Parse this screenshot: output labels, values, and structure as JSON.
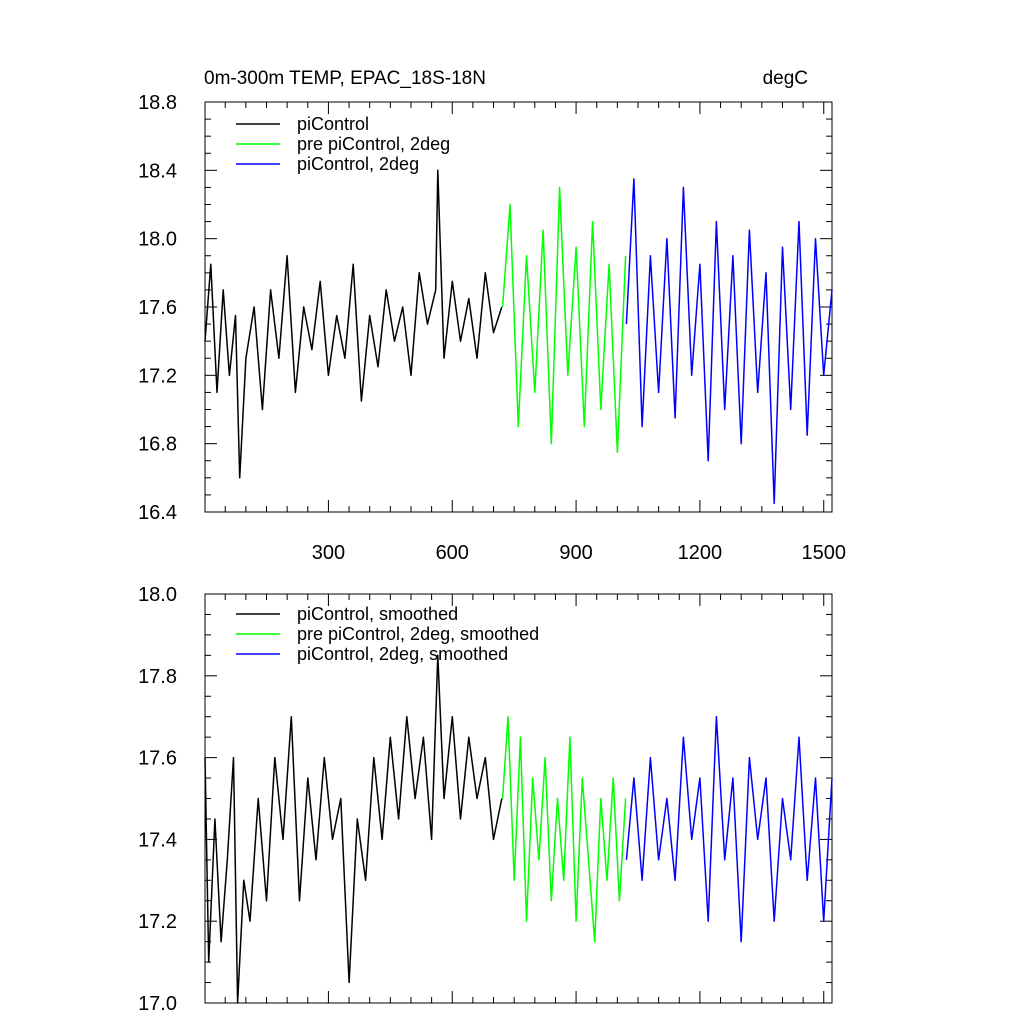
{
  "figure": {
    "title_left": "0m-300m TEMP, EPAC_18S-18N",
    "title_right": "degC"
  },
  "chart_data": [
    {
      "type": "line",
      "title": "0m-300m TEMP, EPAC_18S-18N",
      "units": "degC",
      "xlabel": "",
      "ylabel": "",
      "xlim": [
        1,
        1520
      ],
      "ylim": [
        16.4,
        18.8
      ],
      "xticks": [
        300,
        600,
        900,
        1200,
        1500
      ],
      "yticks": [
        16.4,
        16.8,
        17.2,
        17.6,
        18.0,
        18.4,
        18.8
      ],
      "ytick_labels": [
        "16.4",
        "16.8",
        "17.2",
        "17.6",
        "18.0",
        "18.4",
        "18.8"
      ],
      "legend_position": "top-left",
      "series": [
        {
          "name": "piControl",
          "color": "#000000",
          "x": [
            1,
            15,
            30,
            45,
            60,
            75,
            85,
            100,
            120,
            140,
            160,
            180,
            200,
            220,
            240,
            260,
            280,
            300,
            320,
            340,
            360,
            380,
            400,
            420,
            440,
            460,
            480,
            500,
            520,
            540,
            560,
            565,
            580,
            600,
            620,
            640,
            660,
            680,
            700,
            720
          ],
          "values": [
            17.4,
            17.85,
            17.1,
            17.7,
            17.2,
            17.55,
            16.6,
            17.3,
            17.6,
            17.0,
            17.7,
            17.3,
            17.9,
            17.1,
            17.6,
            17.35,
            17.75,
            17.2,
            17.55,
            17.3,
            17.85,
            17.05,
            17.55,
            17.25,
            17.7,
            17.4,
            17.6,
            17.2,
            17.8,
            17.5,
            17.7,
            18.4,
            17.3,
            17.75,
            17.4,
            17.65,
            17.3,
            17.8,
            17.45,
            17.6
          ]
        },
        {
          "name": "pre piControl, 2deg",
          "color": "#00ff00",
          "x": [
            722,
            740,
            760,
            780,
            800,
            820,
            840,
            860,
            880,
            900,
            920,
            940,
            960,
            980,
            1000,
            1020
          ],
          "values": [
            17.6,
            18.2,
            16.9,
            17.9,
            17.1,
            18.05,
            16.8,
            18.3,
            17.2,
            17.95,
            16.9,
            18.1,
            17.0,
            17.85,
            16.75,
            17.9
          ]
        },
        {
          "name": "piControl, 2deg",
          "color": "#0000ff",
          "x": [
            1022,
            1040,
            1060,
            1080,
            1100,
            1120,
            1140,
            1160,
            1180,
            1200,
            1220,
            1240,
            1260,
            1280,
            1300,
            1320,
            1340,
            1360,
            1380,
            1400,
            1420,
            1440,
            1460,
            1480,
            1500,
            1520
          ],
          "values": [
            17.5,
            18.35,
            16.9,
            17.9,
            17.1,
            18.0,
            16.95,
            18.3,
            17.2,
            17.85,
            16.7,
            18.1,
            17.0,
            17.9,
            16.8,
            18.05,
            17.1,
            17.8,
            16.45,
            17.95,
            17.0,
            18.1,
            16.85,
            18.0,
            17.2,
            17.7
          ]
        }
      ]
    },
    {
      "type": "line",
      "title": "",
      "xlabel": "",
      "ylabel": "",
      "xlim": [
        1,
        1520
      ],
      "ylim": [
        17.0,
        18.0
      ],
      "xticks": [
        300,
        600,
        900,
        1200,
        1500
      ],
      "yticks": [
        17.0,
        17.2,
        17.4,
        17.6,
        17.8,
        18.0
      ],
      "ytick_labels": [
        "17.0",
        "17.2",
        "17.4",
        "17.6",
        "17.8",
        "18.0"
      ],
      "legend_position": "top-left",
      "series": [
        {
          "name": "piControl, smoothed",
          "color": "#000000",
          "x": [
            1,
            10,
            25,
            40,
            55,
            70,
            80,
            95,
            110,
            130,
            150,
            170,
            190,
            210,
            230,
            250,
            270,
            290,
            310,
            330,
            350,
            370,
            390,
            410,
            430,
            450,
            470,
            490,
            510,
            530,
            550,
            565,
            580,
            600,
            620,
            640,
            660,
            680,
            700,
            720
          ],
          "values": [
            17.6,
            17.1,
            17.45,
            17.15,
            17.35,
            17.6,
            17.0,
            17.3,
            17.2,
            17.5,
            17.25,
            17.6,
            17.4,
            17.7,
            17.25,
            17.55,
            17.35,
            17.6,
            17.4,
            17.5,
            17.05,
            17.45,
            17.3,
            17.6,
            17.4,
            17.65,
            17.45,
            17.7,
            17.5,
            17.65,
            17.4,
            17.85,
            17.5,
            17.7,
            17.45,
            17.65,
            17.5,
            17.6,
            17.4,
            17.5
          ]
        },
        {
          "name": "pre piControl, 2deg, smoothed",
          "color": "#00ff00",
          "x": [
            722,
            735,
            750,
            765,
            780,
            795,
            810,
            825,
            840,
            855,
            870,
            885,
            900,
            915,
            930,
            945,
            960,
            975,
            990,
            1005,
            1020
          ],
          "values": [
            17.5,
            17.7,
            17.3,
            17.65,
            17.2,
            17.55,
            17.35,
            17.6,
            17.25,
            17.5,
            17.3,
            17.65,
            17.2,
            17.55,
            17.35,
            17.15,
            17.5,
            17.3,
            17.55,
            17.25,
            17.5
          ]
        },
        {
          "name": "piControl, 2deg, smoothed",
          "color": "#0000ff",
          "x": [
            1022,
            1040,
            1060,
            1080,
            1100,
            1120,
            1140,
            1160,
            1180,
            1200,
            1220,
            1240,
            1260,
            1280,
            1300,
            1320,
            1340,
            1360,
            1380,
            1400,
            1420,
            1440,
            1460,
            1480,
            1500,
            1520
          ],
          "values": [
            17.35,
            17.55,
            17.3,
            17.6,
            17.35,
            17.5,
            17.3,
            17.65,
            17.4,
            17.55,
            17.2,
            17.7,
            17.35,
            17.55,
            17.15,
            17.6,
            17.4,
            17.55,
            17.2,
            17.5,
            17.35,
            17.65,
            17.3,
            17.55,
            17.2,
            17.55
          ]
        }
      ]
    }
  ]
}
